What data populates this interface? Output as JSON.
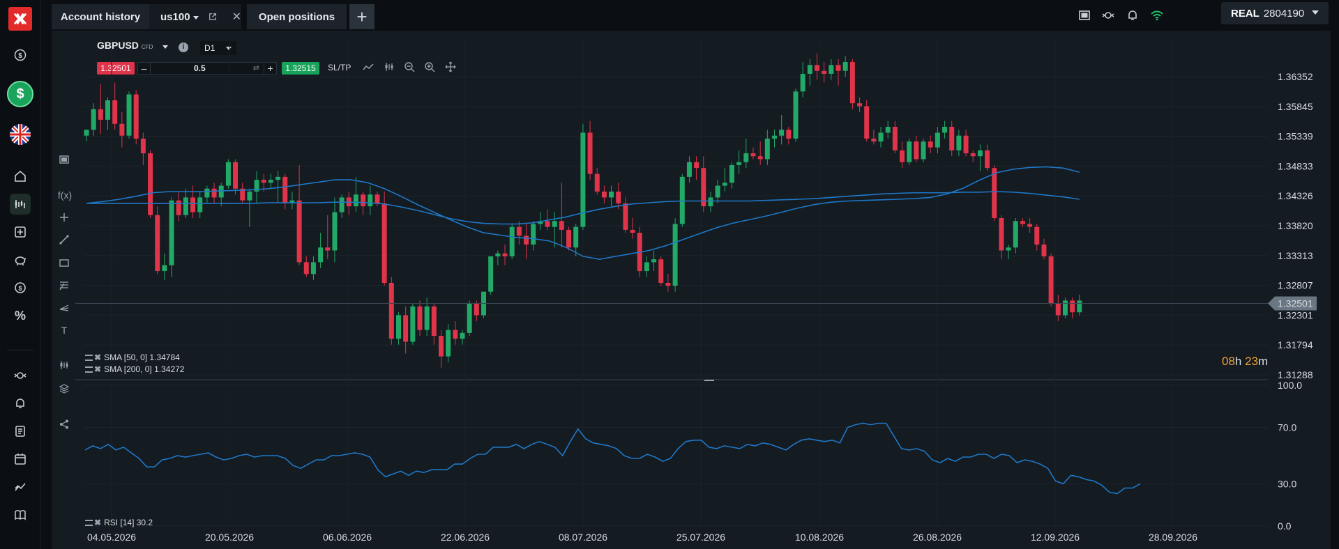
{
  "tabs": [
    {
      "label": "Account history"
    },
    {
      "label": "us100"
    },
    {
      "label": "Open positions"
    }
  ],
  "account": {
    "mode": "REAL",
    "number": "2804190"
  },
  "instrument": {
    "symbol": "GBPUSD",
    "type": "CFD",
    "timeframe": "D1"
  },
  "trade": {
    "sell_price": "1.32501",
    "volume": "0.5",
    "buy_price": "1.32515",
    "sltp_label": "SL/TP",
    "minus": "–",
    "plus": "+"
  },
  "indicators": {
    "sma50": "SMA [50, 0] 1.34784",
    "sma200": "SMA [200, 0] 1.34272",
    "rsi": "RSI [14] 30.2"
  },
  "timer": {
    "hours": "08",
    "h": "h",
    "minutes": "23",
    "m": "m"
  },
  "icons": {
    "nav": [
      "dollar-icon",
      "deposit-icon",
      "uk-flag-icon",
      "home-icon",
      "chart-icon",
      "news-icon",
      "piggy-bank-icon",
      "coin-icon",
      "percent-icon",
      "exchange-icon",
      "bell-icon",
      "document-icon",
      "calendar-icon",
      "trend-icon",
      "book-icon"
    ],
    "top": [
      "screen-icon",
      "exchange-icon",
      "bell-icon",
      "wifi-icon",
      "menu-icon"
    ]
  },
  "colors": {
    "up": "#22a967",
    "down": "#e0344a",
    "sma": "#1f78c8",
    "rsi": "#1f78c8",
    "timer": "#f0a43c",
    "price_tag": "#6a7682"
  },
  "chart_data": [
    {
      "type": "candlestick",
      "title": "GBPUSD D1",
      "yaxis_ticks": [
        "1.36352",
        "1.35845",
        "1.35339",
        "1.34833",
        "1.34326",
        "1.33820",
        "1.33313",
        "1.32807",
        "1.32301",
        "1.31794",
        "1.31288"
      ],
      "xaxis_ticks": [
        "04.05.2026",
        "20.05.2026",
        "06.06.2026",
        "22.06.2026",
        "08.07.2026",
        "25.07.2026",
        "10.08.2026",
        "26.08.2026",
        "12.09.2026",
        "28.09.2026"
      ],
      "current_price": "1.32501",
      "ylim": [
        1.31288,
        1.3685
      ],
      "candles": [
        [
          1.3535,
          1.3545,
          1.3525,
          1.3545
        ],
        [
          1.3545,
          1.359,
          1.3535,
          1.358
        ],
        [
          1.358,
          1.3622,
          1.3538,
          1.3562
        ],
        [
          1.3562,
          1.36,
          1.3545,
          1.3595
        ],
        [
          1.3595,
          1.3625,
          1.3545,
          1.3555
        ],
        [
          1.3555,
          1.3575,
          1.3515,
          1.3535
        ],
        [
          1.3535,
          1.361,
          1.353,
          1.3605
        ],
        [
          1.3605,
          1.3612,
          1.352,
          1.353
        ],
        [
          1.353,
          1.354,
          1.3485,
          1.3505
        ],
        [
          1.3505,
          1.351,
          1.3395,
          1.34
        ],
        [
          1.34,
          1.3415,
          1.33,
          1.3305
        ],
        [
          1.3305,
          1.3335,
          1.329,
          1.3315
        ],
        [
          1.3315,
          1.343,
          1.3295,
          1.3425
        ],
        [
          1.3425,
          1.344,
          1.339,
          1.34
        ],
        [
          1.34,
          1.3445,
          1.3395,
          1.343
        ],
        [
          1.343,
          1.345,
          1.3395,
          1.3405
        ],
        [
          1.3405,
          1.344,
          1.3395,
          1.343
        ],
        [
          1.343,
          1.345,
          1.342,
          1.3445
        ],
        [
          1.3445,
          1.3455,
          1.342,
          1.343
        ],
        [
          1.343,
          1.3455,
          1.3415,
          1.345
        ],
        [
          1.345,
          1.3495,
          1.3445,
          1.349
        ],
        [
          1.349,
          1.3495,
          1.3435,
          1.3445
        ],
        [
          1.3445,
          1.3455,
          1.342,
          1.3425
        ],
        [
          1.3425,
          1.3445,
          1.338,
          1.344
        ],
        [
          1.344,
          1.3475,
          1.342,
          1.346
        ],
        [
          1.346,
          1.347,
          1.344,
          1.3455
        ],
        [
          1.3455,
          1.347,
          1.3445,
          1.346
        ],
        [
          1.346,
          1.3475,
          1.342,
          1.3465
        ],
        [
          1.3465,
          1.347,
          1.341,
          1.342
        ],
        [
          1.342,
          1.344,
          1.341,
          1.3425
        ],
        [
          1.3425,
          1.3485,
          1.3315,
          1.332
        ],
        [
          1.332,
          1.333,
          1.3295,
          1.33
        ],
        [
          1.33,
          1.333,
          1.329,
          1.332
        ],
        [
          1.332,
          1.337,
          1.331,
          1.3345
        ],
        [
          1.3345,
          1.34,
          1.3325,
          1.334
        ],
        [
          1.334,
          1.343,
          1.332,
          1.3405
        ],
        [
          1.3405,
          1.3435,
          1.3395,
          1.343
        ],
        [
          1.343,
          1.344,
          1.34,
          1.3415
        ],
        [
          1.3415,
          1.3465,
          1.3405,
          1.3435
        ],
        [
          1.3435,
          1.344,
          1.34,
          1.3415
        ],
        [
          1.3415,
          1.345,
          1.34,
          1.3435
        ],
        [
          1.3435,
          1.344,
          1.3415,
          1.342
        ],
        [
          1.342,
          1.344,
          1.328,
          1.3285
        ],
        [
          1.3285,
          1.3295,
          1.318,
          1.319
        ],
        [
          1.319,
          1.3235,
          1.318,
          1.323
        ],
        [
          1.323,
          1.3245,
          1.3165,
          1.3185
        ],
        [
          1.3185,
          1.325,
          1.318,
          1.3245
        ],
        [
          1.3245,
          1.3255,
          1.3195,
          1.3205
        ],
        [
          1.3205,
          1.326,
          1.3195,
          1.3245
        ],
        [
          1.3245,
          1.325,
          1.318,
          1.3195
        ],
        [
          1.3195,
          1.3205,
          1.314,
          1.316
        ],
        [
          1.316,
          1.3215,
          1.315,
          1.3205
        ],
        [
          1.3205,
          1.322,
          1.318,
          1.319
        ],
        [
          1.319,
          1.3205,
          1.318,
          1.32
        ],
        [
          1.32,
          1.3255,
          1.3195,
          1.325
        ],
        [
          1.325,
          1.3255,
          1.322,
          1.323
        ],
        [
          1.323,
          1.327,
          1.3225,
          1.327
        ],
        [
          1.327,
          1.333,
          1.3265,
          1.333
        ],
        [
          1.333,
          1.334,
          1.3315,
          1.3335
        ],
        [
          1.3335,
          1.335,
          1.3315,
          1.333
        ],
        [
          1.333,
          1.3385,
          1.3325,
          1.338
        ],
        [
          1.338,
          1.339,
          1.335,
          1.3365
        ],
        [
          1.3365,
          1.3385,
          1.3325,
          1.335
        ],
        [
          1.335,
          1.339,
          1.334,
          1.3385
        ],
        [
          1.3385,
          1.3405,
          1.3375,
          1.339
        ],
        [
          1.339,
          1.341,
          1.3375,
          1.338
        ],
        [
          1.338,
          1.3405,
          1.3345,
          1.339
        ],
        [
          1.339,
          1.3455,
          1.3345,
          1.3375
        ],
        [
          1.3375,
          1.338,
          1.334,
          1.3345
        ],
        [
          1.3345,
          1.3385,
          1.333,
          1.338
        ],
        [
          1.338,
          1.3555,
          1.3375,
          1.354
        ],
        [
          1.354,
          1.356,
          1.346,
          1.347
        ],
        [
          1.347,
          1.348,
          1.3435,
          1.344
        ],
        [
          1.344,
          1.345,
          1.342,
          1.343
        ],
        [
          1.343,
          1.345,
          1.3415,
          1.344
        ],
        [
          1.344,
          1.3455,
          1.341,
          1.342
        ],
        [
          1.342,
          1.343,
          1.337,
          1.3375
        ],
        [
          1.3375,
          1.3395,
          1.336,
          1.337
        ],
        [
          1.337,
          1.338,
          1.3295,
          1.3305
        ],
        [
          1.3305,
          1.333,
          1.3295,
          1.332
        ],
        [
          1.332,
          1.334,
          1.3305,
          1.3325
        ],
        [
          1.3325,
          1.333,
          1.328,
          1.3285
        ],
        [
          1.3285,
          1.33,
          1.327,
          1.328
        ],
        [
          1.328,
          1.3395,
          1.327,
          1.3385
        ],
        [
          1.3385,
          1.347,
          1.338,
          1.3465
        ],
        [
          1.3465,
          1.35,
          1.3455,
          1.349
        ],
        [
          1.349,
          1.35,
          1.346,
          1.348
        ],
        [
          1.348,
          1.35,
          1.3405,
          1.3415
        ],
        [
          1.3415,
          1.344,
          1.3405,
          1.343
        ],
        [
          1.343,
          1.346,
          1.342,
          1.345
        ],
        [
          1.345,
          1.348,
          1.344,
          1.3455
        ],
        [
          1.3455,
          1.349,
          1.3445,
          1.3485
        ],
        [
          1.3485,
          1.351,
          1.347,
          1.349
        ],
        [
          1.349,
          1.353,
          1.348,
          1.3505
        ],
        [
          1.3505,
          1.3515,
          1.3495,
          1.35
        ],
        [
          1.35,
          1.3525,
          1.3485,
          1.3495
        ],
        [
          1.3495,
          1.3545,
          1.3485,
          1.353
        ],
        [
          1.353,
          1.3545,
          1.3515,
          1.3535
        ],
        [
          1.3535,
          1.357,
          1.352,
          1.3545
        ],
        [
          1.3545,
          1.355,
          1.352,
          1.353
        ],
        [
          1.353,
          1.3615,
          1.3525,
          1.361
        ],
        [
          1.361,
          1.366,
          1.36,
          1.364
        ],
        [
          1.364,
          1.3665,
          1.362,
          1.3655
        ],
        [
          1.3655,
          1.3675,
          1.363,
          1.3645
        ],
        [
          1.3645,
          1.366,
          1.3625,
          1.364
        ],
        [
          1.364,
          1.3665,
          1.363,
          1.3655
        ],
        [
          1.3655,
          1.3665,
          1.362,
          1.3645
        ],
        [
          1.3645,
          1.367,
          1.3635,
          1.366
        ],
        [
          1.366,
          1.3665,
          1.358,
          1.359
        ],
        [
          1.359,
          1.36,
          1.3575,
          1.3585
        ],
        [
          1.3585,
          1.3595,
          1.3525,
          1.353
        ],
        [
          1.353,
          1.3545,
          1.352,
          1.3525
        ],
        [
          1.3525,
          1.355,
          1.3515,
          1.354
        ],
        [
          1.354,
          1.356,
          1.353,
          1.355
        ],
        [
          1.355,
          1.356,
          1.3505,
          1.351
        ],
        [
          1.351,
          1.3525,
          1.348,
          1.349
        ],
        [
          1.349,
          1.353,
          1.3485,
          1.3525
        ],
        [
          1.3525,
          1.3535,
          1.349,
          1.3495
        ],
        [
          1.3495,
          1.353,
          1.349,
          1.3525
        ],
        [
          1.3525,
          1.3535,
          1.3505,
          1.3515
        ],
        [
          1.3515,
          1.355,
          1.3505,
          1.354
        ],
        [
          1.354,
          1.356,
          1.353,
          1.355
        ],
        [
          1.355,
          1.356,
          1.35,
          1.351
        ],
        [
          1.351,
          1.3545,
          1.35,
          1.3535
        ],
        [
          1.3535,
          1.3545,
          1.35,
          1.3505
        ],
        [
          1.3505,
          1.351,
          1.349,
          1.35
        ],
        [
          1.35,
          1.352,
          1.3475,
          1.351
        ],
        [
          1.351,
          1.352,
          1.3475,
          1.348
        ],
        [
          1.348,
          1.3485,
          1.339,
          1.3395
        ],
        [
          1.3395,
          1.34,
          1.3325,
          1.334
        ],
        [
          1.334,
          1.335,
          1.3325,
          1.3345
        ],
        [
          1.3345,
          1.3395,
          1.3335,
          1.339
        ],
        [
          1.339,
          1.3395,
          1.338,
          1.3385
        ],
        [
          1.3385,
          1.3395,
          1.337,
          1.338
        ],
        [
          1.338,
          1.3385,
          1.334,
          1.335
        ],
        [
          1.335,
          1.336,
          1.3325,
          1.333
        ],
        [
          1.333,
          1.3335,
          1.3245,
          1.325
        ],
        [
          1.325,
          1.3265,
          1.322,
          1.323
        ],
        [
          1.323,
          1.326,
          1.3225,
          1.3255
        ],
        [
          1.3255,
          1.326,
          1.3225,
          1.3235
        ],
        [
          1.3235,
          1.3265,
          1.323,
          1.3255
        ]
      ],
      "sma50": [
        1.342,
        1.3423,
        1.3427,
        1.3432,
        1.3438,
        1.344,
        1.344,
        1.344,
        1.3441,
        1.3442,
        1.3443,
        1.3445,
        1.3448,
        1.3452,
        1.3456,
        1.346,
        1.346,
        1.3455,
        1.3445,
        1.3432,
        1.3418,
        1.3405,
        1.3392,
        1.338,
        1.337,
        1.3366,
        1.3362,
        1.336,
        1.3356,
        1.3345,
        1.333,
        1.3325,
        1.333,
        1.3335,
        1.334,
        1.3348,
        1.3358,
        1.3368,
        1.3378,
        1.3386,
        1.3392,
        1.3398,
        1.3405,
        1.3412,
        1.3418,
        1.3422,
        1.3424,
        1.3425,
        1.3426,
        1.3427,
        1.3428,
        1.343,
        1.3436,
        1.3446,
        1.346,
        1.3472,
        1.3478,
        1.3481,
        1.3482,
        1.348,
        1.3473
      ],
      "sma200": [
        1.342,
        1.342,
        1.342,
        1.342,
        1.342,
        1.342,
        1.342,
        1.342,
        1.342,
        1.342,
        1.342,
        1.3421,
        1.3421,
        1.3421,
        1.3421,
        1.3422,
        1.3422,
        1.3421,
        1.3419,
        1.3414,
        1.3408,
        1.3401,
        1.3394,
        1.3389,
        1.3386,
        1.3385,
        1.3385,
        1.3387,
        1.3392,
        1.3397,
        1.3404,
        1.341,
        1.3415,
        1.3419,
        1.3421,
        1.3423,
        1.3424,
        1.3424,
        1.3424,
        1.3424,
        1.3424,
        1.3425,
        1.3426,
        1.3427,
        1.3428,
        1.343,
        1.3432,
        1.3434,
        1.3436,
        1.3437,
        1.3438,
        1.3438,
        1.3438,
        1.3439,
        1.3439,
        1.344,
        1.3439,
        1.3437,
        1.3434,
        1.3431,
        1.3427
      ]
    },
    {
      "type": "line",
      "title": "RSI [14]",
      "yaxis_ticks": [
        "100.0",
        "70.0",
        "30.0",
        "0.0"
      ],
      "ylim": [
        0,
        100
      ],
      "values": [
        54,
        57,
        55,
        58,
        54,
        56,
        52,
        48,
        42,
        42,
        47,
        48,
        50,
        49,
        50,
        51,
        52,
        49,
        47,
        48,
        50,
        51,
        49,
        50,
        50,
        50,
        48,
        43,
        41,
        44,
        47,
        47,
        50,
        50,
        51,
        52,
        51,
        49,
        40,
        35,
        37,
        39,
        36,
        39,
        38,
        40,
        40,
        40,
        44,
        44,
        48,
        51,
        51,
        56,
        56,
        56,
        58,
        55,
        58,
        60,
        58,
        56,
        50,
        60,
        69,
        62,
        59,
        58,
        57,
        55,
        50,
        48,
        48,
        51,
        49,
        46,
        48,
        55,
        60,
        61,
        61,
        56,
        55,
        57,
        56,
        55,
        58,
        57,
        59,
        58,
        56,
        54,
        58,
        61,
        62,
        61,
        60,
        61,
        59,
        70,
        72,
        73,
        72,
        73,
        73,
        64,
        55,
        54,
        55,
        53,
        47,
        45,
        48,
        46,
        49,
        49,
        51,
        51,
        48,
        51,
        50,
        45,
        47,
        46,
        44,
        41,
        32,
        30,
        36,
        35,
        33,
        32,
        29,
        24,
        23,
        27,
        27,
        30
      ]
    }
  ]
}
